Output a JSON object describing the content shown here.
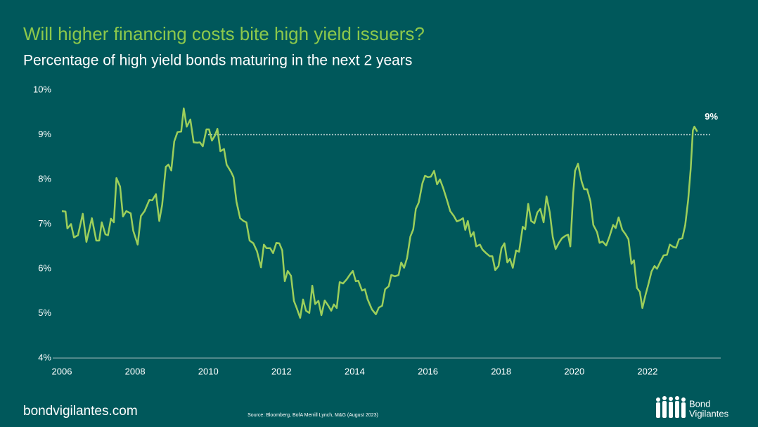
{
  "chart_data": {
    "type": "line",
    "title": "Will higher financing costs bite high yield issuers?",
    "subtitle": "Percentage of high yield bonds maturing in the next 2 years",
    "footer": "bondvigilantes.com",
    "source": "Source: Bloomberg, BofA Merrill Lynch, M&G (August 2023)",
    "logo": [
      "Bond",
      "Vigilantes"
    ],
    "color": "#9ccf5b",
    "reference_line": {
      "value": 9,
      "label": "9%",
      "from": 2010
    },
    "xlim": [
      2006,
      2024
    ],
    "xticks": [
      2006,
      2008,
      2010,
      2012,
      2014,
      2016,
      2018,
      2020,
      2022
    ],
    "ylim": [
      4,
      10
    ],
    "yticks": [
      {
        "value": 4,
        "label": "4%"
      },
      {
        "value": 5,
        "label": "5%"
      },
      {
        "value": 6,
        "label": "6%"
      },
      {
        "value": 7,
        "label": "7%"
      },
      {
        "value": 8,
        "label": "8%"
      },
      {
        "value": 9,
        "label": "9%"
      },
      {
        "value": 10,
        "label": "10%"
      }
    ],
    "x": [
      2006.0,
      2006.1,
      2006.15,
      2006.25,
      2006.33,
      2006.44,
      2006.57,
      2006.67,
      2006.82,
      2006.94,
      2007.02,
      2007.09,
      2007.19,
      2007.26,
      2007.34,
      2007.42,
      2007.49,
      2007.59,
      2007.67,
      2007.76,
      2007.88,
      2007.95,
      2008.07,
      2008.16,
      2008.26,
      2008.39,
      2008.47,
      2008.57,
      2008.66,
      2008.74,
      2008.84,
      2008.91,
      2008.99,
      2009.07,
      2009.16,
      2009.26,
      2009.33,
      2009.41,
      2009.51,
      2009.6,
      2009.7,
      2009.77,
      2009.85,
      2009.95,
      2010.02,
      2010.1,
      2010.18,
      2010.25,
      2010.33,
      2010.43,
      2010.5,
      2010.62,
      2010.69,
      2010.77,
      2010.87,
      2010.96,
      2011.04,
      2011.13,
      2011.23,
      2011.33,
      2011.44,
      2011.52,
      2011.59,
      2011.69,
      2011.77,
      2011.86,
      2011.94,
      2012.02,
      2012.09,
      2012.17,
      2012.26,
      2012.34,
      2012.41,
      2012.51,
      2012.59,
      2012.67,
      2012.76,
      2012.84,
      2012.92,
      2013.01,
      2013.09,
      2013.18,
      2013.28,
      2013.36,
      2013.43,
      2013.51,
      2013.59,
      2013.68,
      2013.78,
      2013.87,
      2013.95,
      2014.03,
      2014.1,
      2014.2,
      2014.28,
      2014.35,
      2014.47,
      2014.58,
      2014.66,
      2014.75,
      2014.83,
      2014.93,
      2015.0,
      2015.1,
      2015.2,
      2015.27,
      2015.35,
      2015.43,
      2015.52,
      2015.6,
      2015.67,
      2015.75,
      2015.85,
      2015.92,
      2016.0,
      2016.08,
      2016.17,
      2016.25,
      2016.33,
      2016.42,
      2016.52,
      2016.61,
      2016.71,
      2016.79,
      2016.88,
      2016.96,
      2017.02,
      2017.09,
      2017.17,
      2017.25,
      2017.32,
      2017.42,
      2017.49,
      2017.59,
      2017.69,
      2017.76,
      2017.84,
      2017.93,
      2018.01,
      2018.09,
      2018.17,
      2018.24,
      2018.32,
      2018.41,
      2018.49,
      2018.59,
      2018.66,
      2018.74,
      2018.82,
      2018.91,
      2018.99,
      2019.07,
      2019.16,
      2019.24,
      2019.33,
      2019.41,
      2019.49,
      2019.58,
      2019.66,
      2019.76,
      2019.83,
      2019.89,
      2019.97,
      2020.02,
      2020.1,
      2020.2,
      2020.27,
      2020.35,
      2020.44,
      2020.52,
      2020.62,
      2020.69,
      2020.77,
      2020.87,
      2020.96,
      2021.06,
      2021.13,
      2021.21,
      2021.31,
      2021.4,
      2021.48,
      2021.56,
      2021.63,
      2021.71,
      2021.79,
      2021.86,
      2021.94,
      2022.02,
      2022.11,
      2022.19,
      2022.26,
      2022.34,
      2022.44,
      2022.53,
      2022.61,
      2022.7,
      2022.78,
      2022.86,
      2022.95,
      2023.03,
      2023.11,
      2023.18,
      2023.24,
      2023.28,
      2023.36
    ],
    "values": [
      7.29,
      7.28,
      6.9,
      7.0,
      6.7,
      6.75,
      7.23,
      6.6,
      7.13,
      6.63,
      6.63,
      7.04,
      6.77,
      6.75,
      7.12,
      7.04,
      8.03,
      7.84,
      7.17,
      7.29,
      7.24,
      6.85,
      6.54,
      7.18,
      7.29,
      7.54,
      7.53,
      7.67,
      7.07,
      7.43,
      8.28,
      8.33,
      8.2,
      8.85,
      9.06,
      9.07,
      9.59,
      9.18,
      9.34,
      8.83,
      8.82,
      8.83,
      8.74,
      9.12,
      9.12,
      8.87,
      8.98,
      9.13,
      8.63,
      8.68,
      8.33,
      8.17,
      8.05,
      7.5,
      7.13,
      7.07,
      7.04,
      6.63,
      6.57,
      6.39,
      6.03,
      6.54,
      6.46,
      6.46,
      6.35,
      6.58,
      6.57,
      6.41,
      5.72,
      5.95,
      5.84,
      5.28,
      5.13,
      4.9,
      5.31,
      5.06,
      5.01,
      5.62,
      5.21,
      5.28,
      4.96,
      5.29,
      5.17,
      5.06,
      5.2,
      5.12,
      5.7,
      5.67,
      5.76,
      5.87,
      5.95,
      5.72,
      5.73,
      5.51,
      5.54,
      5.32,
      5.09,
      4.98,
      5.13,
      5.17,
      5.54,
      5.61,
      5.86,
      5.83,
      5.86,
      6.14,
      6.02,
      6.24,
      6.72,
      6.88,
      7.34,
      7.48,
      7.91,
      8.08,
      8.05,
      8.06,
      8.19,
      7.89,
      8.0,
      7.8,
      7.54,
      7.29,
      7.18,
      7.06,
      7.09,
      7.13,
      6.87,
      7.07,
      6.72,
      6.82,
      6.5,
      6.54,
      6.43,
      6.35,
      6.28,
      6.28,
      5.97,
      6.06,
      6.46,
      6.57,
      6.14,
      6.22,
      6.02,
      6.41,
      6.38,
      6.94,
      6.88,
      7.45,
      7.07,
      7.02,
      7.26,
      7.34,
      7.04,
      7.62,
      7.26,
      6.71,
      6.44,
      6.58,
      6.68,
      6.74,
      6.76,
      6.5,
      7.69,
      8.19,
      8.35,
      7.95,
      7.78,
      7.78,
      7.51,
      6.98,
      6.82,
      6.58,
      6.61,
      6.52,
      6.72,
      6.98,
      6.91,
      7.15,
      6.87,
      6.77,
      6.66,
      6.11,
      6.19,
      5.57,
      5.48,
      5.12,
      5.4,
      5.64,
      5.94,
      6.06,
      6.0,
      6.14,
      6.3,
      6.31,
      6.54,
      6.49,
      6.47,
      6.66,
      6.68,
      6.98,
      7.54,
      8.24,
      9.1,
      9.18,
      9.07
    ]
  }
}
